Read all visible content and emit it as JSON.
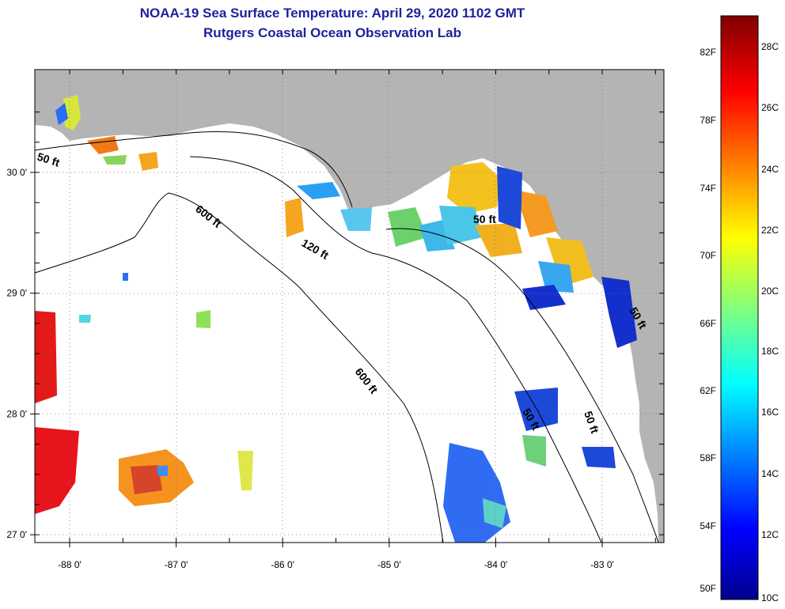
{
  "title": "NOAA-19 Sea Surface Temperature:  April 29, 2020 1102 GMT",
  "subtitle": "Rutgers Coastal Ocean Observation Lab",
  "colors": {
    "land": "#b4b4b4",
    "ocean": "#ffffff",
    "title": "#1f1f9e"
  },
  "lon_ticks": [
    "-88 0'",
    "-87 0'",
    "-86 0'",
    "-85 0'",
    "-84 0'",
    "-83 0'"
  ],
  "lat_ticks": [
    "30 0'",
    "29 0'",
    "28 0'",
    "27 0'"
  ],
  "contours": {
    "c50a": "50 ft",
    "c600a": "600 ft",
    "c120": "120 ft",
    "c50b": "50 ft",
    "c600b": "600 ft",
    "c50c": "50 ft",
    "c50d": "50 ft",
    "c50e": "50 ft"
  },
  "colorbar": {
    "fahrenheit": [
      "82F",
      "78F",
      "74F",
      "70F",
      "66F",
      "62F",
      "58F",
      "54F",
      "50F"
    ],
    "celsius": [
      "28C",
      "26C",
      "24C",
      "22C",
      "20C",
      "18C",
      "16C",
      "14C",
      "12C",
      "10C"
    ],
    "range_c": [
      10,
      29
    ]
  }
}
